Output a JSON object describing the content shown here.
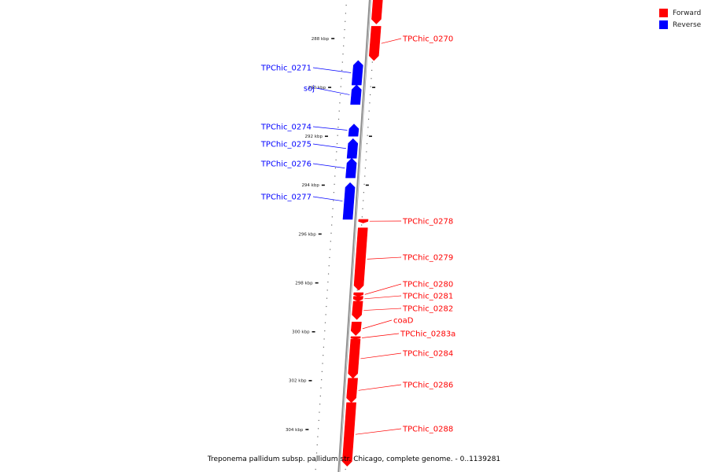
{
  "caption": "Treponema pallidum subsp. pallidum str. Chicago, complete genome. - 0..1139281",
  "legend": [
    {
      "label": "Forward",
      "color": "#ff0000"
    },
    {
      "label": "Reverse",
      "color": "#0000ff"
    }
  ],
  "colors": {
    "forward": "#ff0000",
    "reverse": "#0000ff",
    "axis": "#888888"
  },
  "ticks": [
    "288 kbp",
    "290 kbp",
    "292 kbp",
    "294 kbp",
    "296 kbp",
    "298 kbp",
    "300 kbp",
    "302 kbp",
    "304 kbp"
  ],
  "genes": [
    {
      "label": "",
      "strand": "forward",
      "start_kbp": 286.1,
      "end_kbp": 287.4
    },
    {
      "label": "TPChic_0270",
      "strand": "forward",
      "start_kbp": 287.5,
      "end_kbp": 288.9
    },
    {
      "label": "TPChic_0271",
      "strand": "reverse",
      "start_kbp": 288.9,
      "end_kbp": 289.9
    },
    {
      "label": "soj",
      "strand": "reverse",
      "start_kbp": 289.9,
      "end_kbp": 290.7
    },
    {
      "label": "TPChic_0274",
      "strand": "reverse",
      "start_kbp": 291.5,
      "end_kbp": 292.0
    },
    {
      "label": "TPChic_0275",
      "strand": "reverse",
      "start_kbp": 292.1,
      "end_kbp": 292.9
    },
    {
      "label": "TPChic_0276",
      "strand": "reverse",
      "start_kbp": 292.9,
      "end_kbp": 293.7
    },
    {
      "label": "TPChic_0277",
      "strand": "reverse",
      "start_kbp": 293.9,
      "end_kbp": 295.4
    },
    {
      "label": "TPChic_0278",
      "strand": "forward",
      "start_kbp": 295.4,
      "end_kbp": 295.55
    },
    {
      "label": "TPChic_0279",
      "strand": "forward",
      "start_kbp": 295.75,
      "end_kbp": 298.3
    },
    {
      "label": "TPChic_0280",
      "strand": "forward",
      "start_kbp": 298.4,
      "end_kbp": 298.55
    },
    {
      "label": "TPChic_0281",
      "strand": "forward",
      "start_kbp": 298.55,
      "end_kbp": 298.75
    },
    {
      "label": "TPChic_0282",
      "strand": "forward",
      "start_kbp": 298.75,
      "end_kbp": 299.5
    },
    {
      "label": "coaD",
      "strand": "forward",
      "start_kbp": 299.6,
      "end_kbp": 300.15
    },
    {
      "label": "TPChic_0283a",
      "strand": "forward",
      "start_kbp": 300.2,
      "end_kbp": 300.3
    },
    {
      "label": "TPChic_0284",
      "strand": "forward",
      "start_kbp": 300.3,
      "end_kbp": 301.9
    },
    {
      "label": "TPChic_0286",
      "strand": "forward",
      "start_kbp": 301.9,
      "end_kbp": 302.9
    },
    {
      "label": "TPChic_0288",
      "strand": "forward",
      "start_kbp": 302.9,
      "end_kbp": 305.5
    }
  ]
}
